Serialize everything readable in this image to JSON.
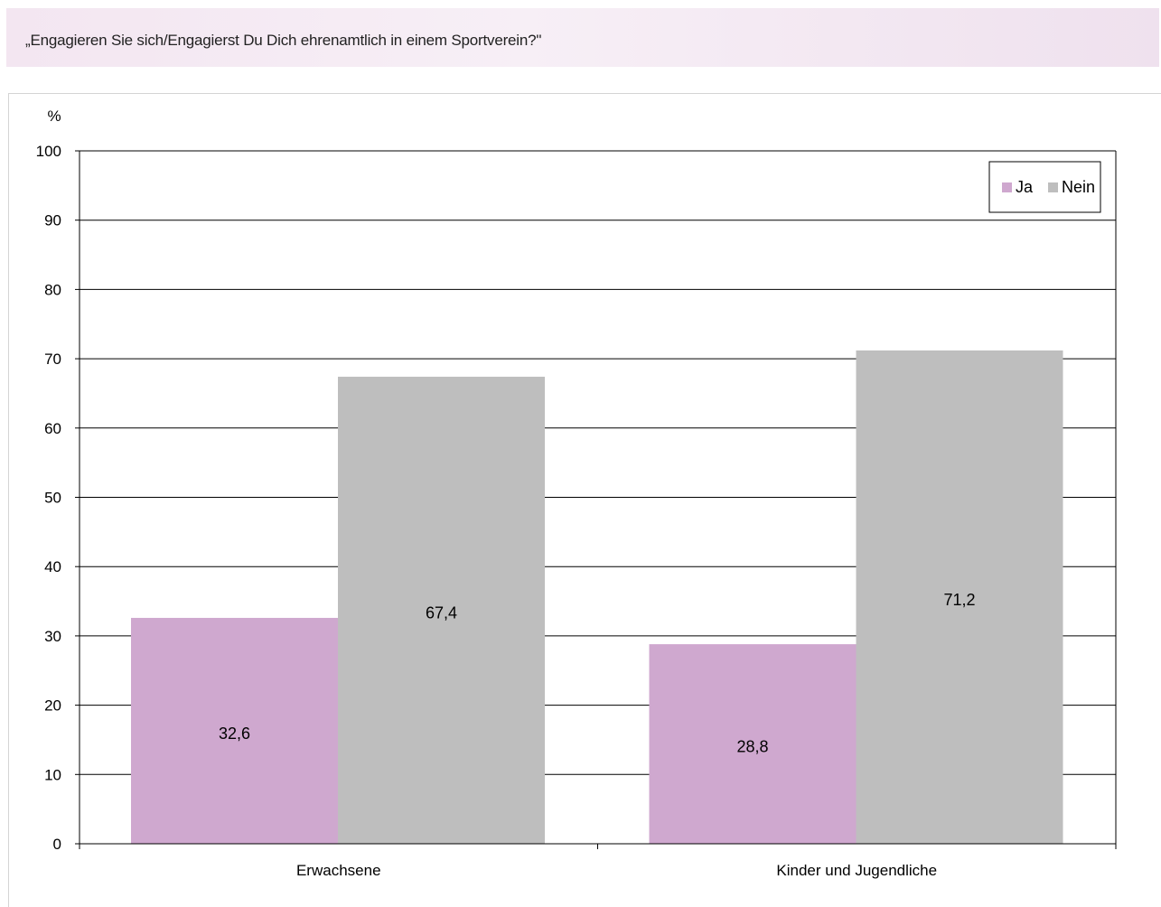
{
  "title": "„Engagieren Sie sich/Engagierst Du Dich ehrenamtlich in einem Sportverein?\"",
  "chart_data": {
    "type": "bar",
    "ylabel": "%",
    "xlabel": "",
    "ylim": [
      0,
      100
    ],
    "yticks": [
      "0",
      "10",
      "20",
      "30",
      "40",
      "50",
      "60",
      "70",
      "80",
      "90",
      "100"
    ],
    "categories": [
      "Erwachsene",
      "Kinder und Jugendliche"
    ],
    "series": [
      {
        "name": "Ja",
        "values": [
          32.6,
          28.8
        ],
        "labels": [
          "32,6",
          "28,8"
        ],
        "color": "#cfa8cf"
      },
      {
        "name": "Nein",
        "values": [
          67.4,
          71.2
        ],
        "labels": [
          "67,4",
          "71,2"
        ],
        "color": "#bebebe"
      }
    ],
    "grid": true,
    "legend_position": "top-right"
  }
}
